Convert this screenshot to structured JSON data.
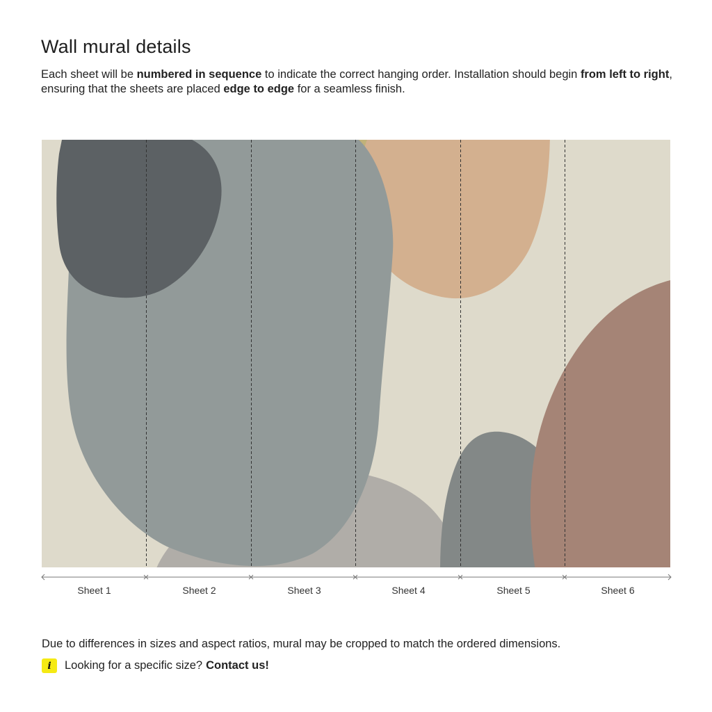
{
  "header": {
    "title": "Wall mural details"
  },
  "intro": {
    "p1": "Each sheet will be ",
    "b1": "numbered in sequence",
    "p2": " to indicate the correct hanging order. Installation should begin ",
    "b2": "from left to right",
    "p3": ", ensuring that the sheets are placed ",
    "b3": "edge to edge",
    "p4": " for a seamless finish."
  },
  "mural": {
    "colors": {
      "background": "#dedacb",
      "dark_slate": "#5c6164",
      "grey_green": "#929a99",
      "olive": "#c1b279",
      "peach": "#d3b08f",
      "taupe": "#b0ada8",
      "slate": "#838887",
      "rose_brown": "#a58476",
      "divider": "#333333"
    }
  },
  "sheets": [
    "Sheet 1",
    "Sheet 2",
    "Sheet 3",
    "Sheet 4",
    "Sheet 5",
    "Sheet 6"
  ],
  "footer": {
    "note": "Due to differences in sizes and aspect ratios, mural may be cropped to match the ordered dimensions.",
    "question": "Looking for a specific size?",
    "contact_label": "Contact us!",
    "info_icon_glyph": "i"
  }
}
